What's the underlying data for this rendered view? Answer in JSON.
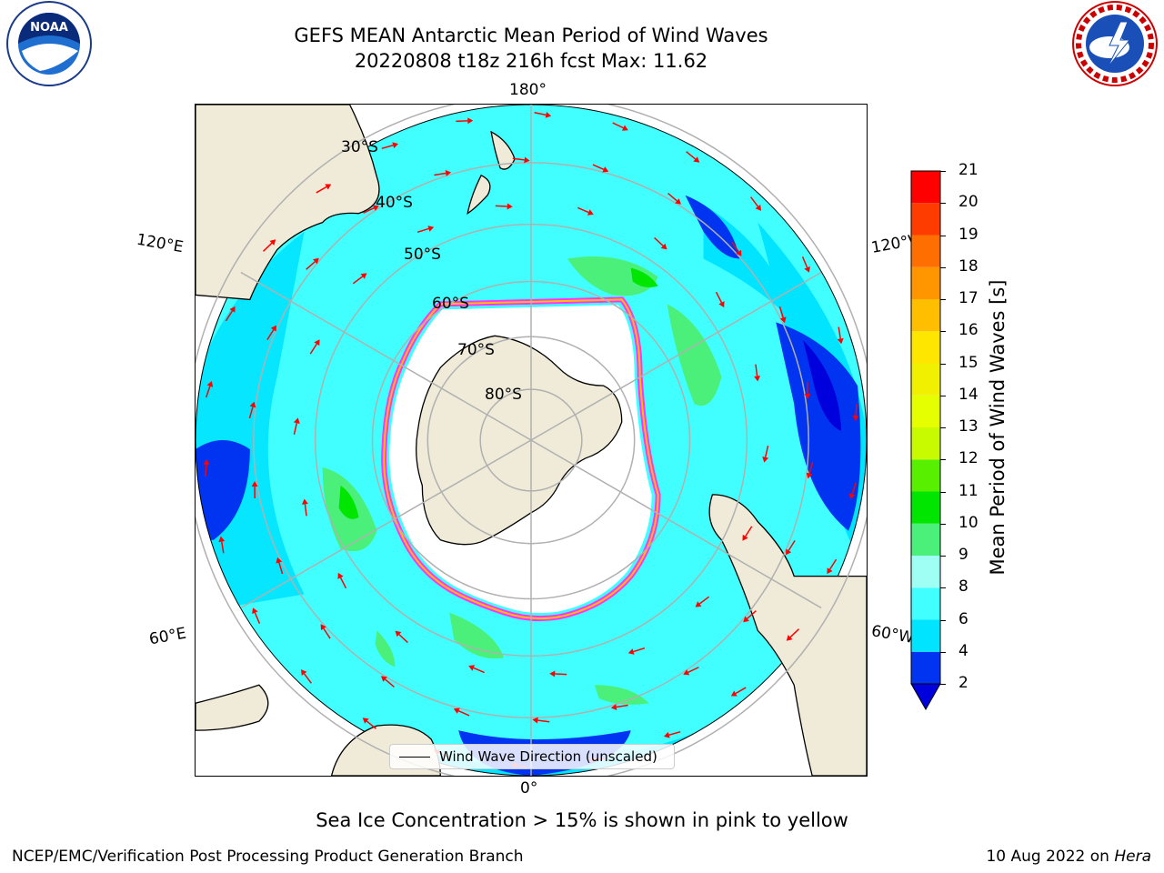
{
  "header": {
    "title_line1": "GEFS MEAN Antarctic Mean Period of Wind Waves",
    "title_line2": "20220808 t18z 216h fcst   Max: 11.62"
  },
  "logos": {
    "left": "NOAA",
    "right": "NATIONAL WEATHER SERVICE"
  },
  "map": {
    "lon_labels": {
      "top": "180°",
      "bottom": "0°",
      "upper_left": "120°E",
      "upper_right": "120°W",
      "lower_left": "60°E",
      "lower_right": "60°W"
    },
    "lat_labels": [
      "30°S",
      "40°S",
      "50°S",
      "60°S",
      "70°S",
      "80°S"
    ],
    "legend_label": "Wind Wave Direction (unscaled)"
  },
  "colorbar": {
    "label": "Mean Period of Wind Waves [s]",
    "ticks": [
      "2",
      "4",
      "6",
      "8",
      "9",
      "10",
      "11",
      "12",
      "13",
      "14",
      "15",
      "16",
      "17",
      "18",
      "19",
      "20",
      "21"
    ],
    "colors": [
      "#0034f0",
      "#00e4ff",
      "#41ffff",
      "#a0fff4",
      "#4af07a",
      "#00e600",
      "#58f000",
      "#c8fa00",
      "#e6ff00",
      "#f0f000",
      "#ffe600",
      "#ffbe00",
      "#ff9600",
      "#ff6e00",
      "#ff3c00",
      "#ff0000"
    ],
    "under_color": "#0000dc"
  },
  "footer": {
    "note": "Sea Ice Concentration > 15% is shown in pink to yellow",
    "credit": "NCEP/EMC/Verification Post Processing Product Generation Branch",
    "date": "10 Aug 2022 on ",
    "machine": "Hera"
  },
  "colors": {
    "ocean_main": "#41ffff",
    "ocean_light": "#00e4ff",
    "land": "#efebd8",
    "ice_edge": "#ff33ff",
    "arrow": "#ff0000",
    "grid": "#b0b0b0"
  }
}
